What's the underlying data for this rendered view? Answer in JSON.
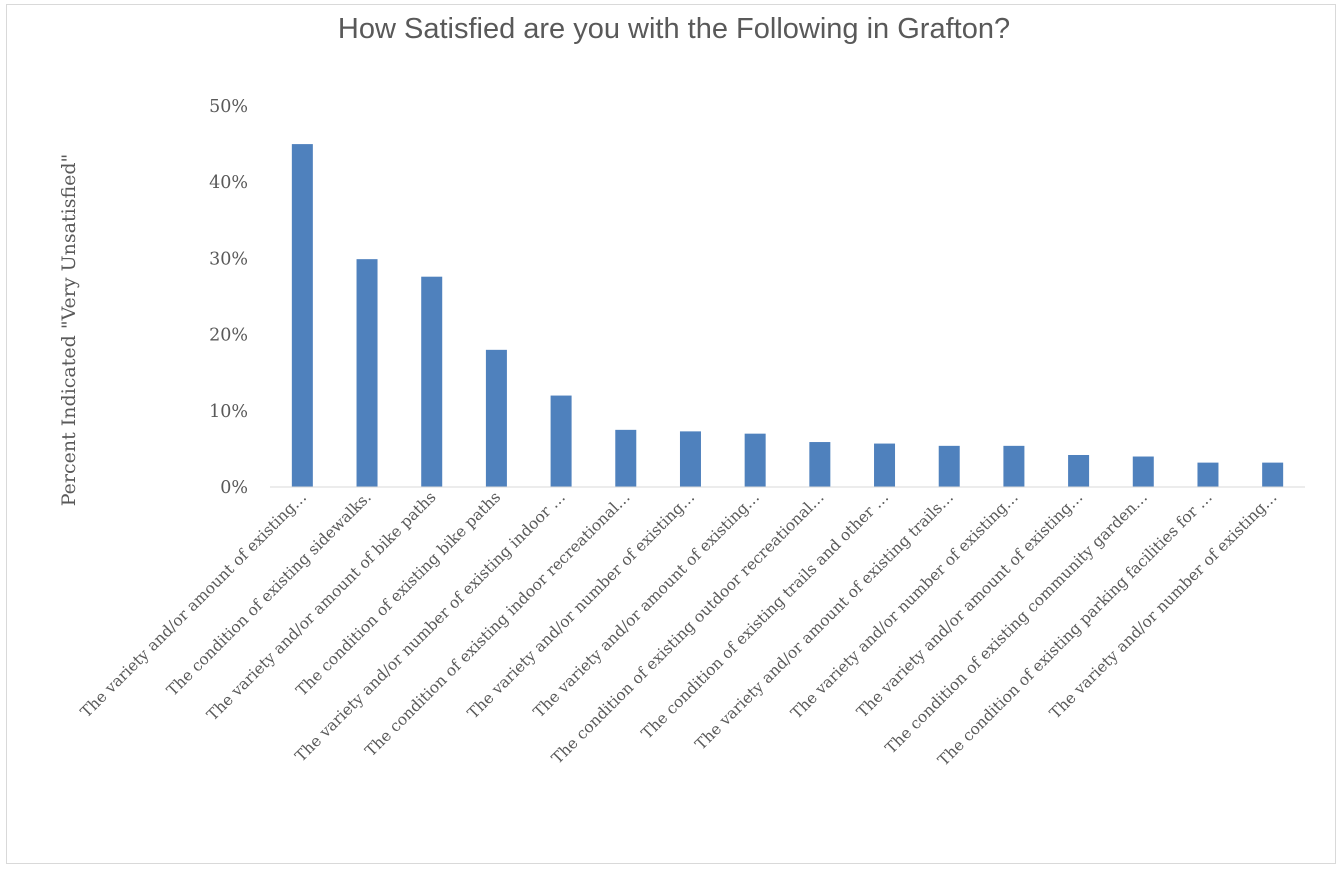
{
  "chart_data": {
    "type": "bar",
    "title": "How Satisfied are you with the Following in Grafton?",
    "ylabel": "Percent Indicated \"Very Unsatisfied\"",
    "xlabel": "",
    "ylim": [
      0,
      50
    ],
    "y_tick_step": 10,
    "y_tick_labels": [
      "0%",
      "10%",
      "20%",
      "30%",
      "40%",
      "50%"
    ],
    "grid": false,
    "legend": "none",
    "bar_color": "#4f81bd",
    "categories": [
      "The variety and/or amount of existing…",
      "The condition of existing sidewalks.",
      "The variety and/or amount of bike paths",
      "The condition of existing bike paths",
      "The variety and/or number of existing indoor …",
      "The condition of existing indoor recreational…",
      "The variety and/or number of existing…",
      "The variety and/or amount of existing…",
      "The condition of existing outdoor recreational…",
      "The condition of existing trails and other …",
      "The variety and/or amount of existing trails…",
      "The variety and/or number of existing…",
      "The variety and/or amount of existing…",
      "The condition of existing community garden…",
      "The condition of existing parking facilities for …",
      "The variety and/or number of existing…"
    ],
    "values": [
      45.0,
      29.9,
      27.6,
      18.0,
      12.0,
      7.5,
      7.3,
      7.0,
      5.9,
      5.7,
      5.4,
      5.4,
      4.2,
      4.0,
      3.2,
      3.2
    ]
  }
}
